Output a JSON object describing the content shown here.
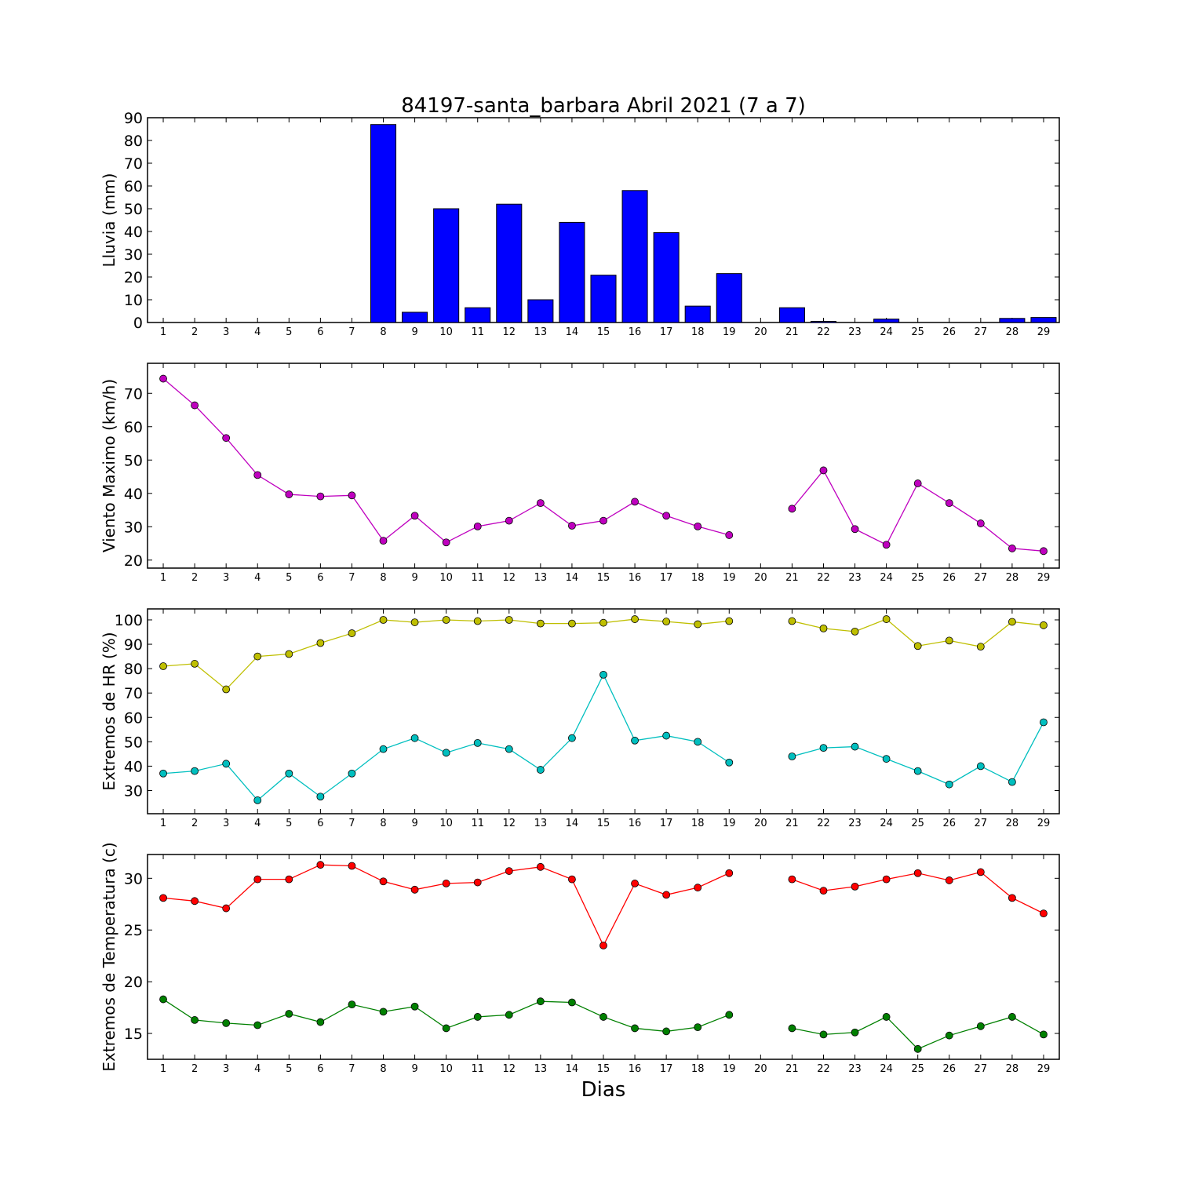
{
  "chart_data": {
    "title": "84197-santa_barbara Abril 2021  (7 a 7)",
    "xlabel": "Dias",
    "days": [
      1,
      2,
      3,
      4,
      5,
      6,
      7,
      8,
      9,
      10,
      11,
      12,
      13,
      14,
      15,
      16,
      17,
      18,
      19,
      20,
      21,
      22,
      23,
      24,
      25,
      26,
      27,
      28,
      29
    ],
    "panels": [
      {
        "type": "bar",
        "ylabel": "Lluvia (mm)",
        "ylim": [
          0,
          90
        ],
        "yticks": [
          0,
          10,
          20,
          30,
          40,
          50,
          60,
          70,
          80,
          90
        ],
        "series": [
          {
            "color": "#0000ff",
            "values": [
              0,
              0,
              0,
              0,
              0,
              0,
              0,
              87,
              4.5,
              50,
              6.5,
              52,
              10,
              44,
              20.8,
              58,
              39.5,
              7.2,
              21.5,
              0,
              6.5,
              0.5,
              0,
              1.5,
              0,
              0,
              0,
              1.8,
              2.2
            ]
          }
        ]
      },
      {
        "type": "line",
        "ylabel": "Viento Maximo (km/h)",
        "ylim": [
          17.6,
          79
        ],
        "yticks": [
          20,
          30,
          40,
          50,
          60,
          70
        ],
        "series": [
          {
            "color": "#bf00bf",
            "values": [
              74.4,
              66.4,
              56.6,
              45.5,
              39.7,
              39.1,
              39.4,
              25.8,
              33.3,
              25.3,
              30.1,
              31.8,
              37.1,
              30.3,
              31.8,
              37.5,
              33.3,
              30.1,
              27.5,
              null,
              35.4,
              46.9,
              29.3,
              24.6,
              43.0,
              37.1,
              31.0,
              23.5,
              22.7
            ]
          }
        ]
      },
      {
        "type": "line",
        "ylabel": "Extremos de HR (%)",
        "ylim": [
          20.5,
          104.5
        ],
        "yticks": [
          30,
          40,
          50,
          60,
          70,
          80,
          90,
          100
        ],
        "series": [
          {
            "color": "#bfbf00",
            "values": [
              81,
              82,
              71.5,
              85,
              86,
              90.5,
              94.5,
              100,
              99,
              100,
              99.5,
              100,
              98.5,
              98.5,
              98.8,
              100.3,
              99.3,
              98.2,
              99.5,
              null,
              99.5,
              96.5,
              95.2,
              100.3,
              89.3,
              91.5,
              89,
              99.2,
              97.8
            ]
          },
          {
            "color": "#00bfbf",
            "values": [
              37,
              38,
              41,
              26,
              37,
              27.5,
              37,
              47,
              51.5,
              45.5,
              49.5,
              47,
              38.5,
              51.5,
              77.5,
              50.5,
              52.5,
              50,
              41.5,
              null,
              44,
              47.5,
              48,
              43,
              38,
              32.5,
              40,
              33.5,
              58
            ]
          }
        ]
      },
      {
        "type": "line",
        "ylabel": "Extremos de Temperatura (c)",
        "ylim": [
          12.5,
          32.3
        ],
        "yticks": [
          15,
          20,
          25,
          30
        ],
        "series": [
          {
            "color": "#ff0000",
            "values": [
              28.1,
              27.8,
              27.1,
              29.9,
              29.9,
              31.3,
              31.2,
              29.7,
              28.9,
              29.5,
              29.6,
              30.7,
              31.1,
              29.9,
              23.5,
              29.5,
              28.4,
              29.1,
              30.5,
              null,
              29.9,
              28.8,
              29.2,
              29.9,
              30.5,
              29.8,
              30.6,
              28.1,
              26.6
            ]
          },
          {
            "color": "#008000",
            "values": [
              18.3,
              16.3,
              16.0,
              15.8,
              16.9,
              16.1,
              17.8,
              17.1,
              17.6,
              15.5,
              16.6,
              16.8,
              18.1,
              18.0,
              16.6,
              15.5,
              15.2,
              15.6,
              16.8,
              null,
              15.5,
              14.9,
              15.1,
              16.6,
              13.5,
              14.8,
              15.7,
              16.6,
              14.9
            ]
          }
        ]
      }
    ]
  }
}
